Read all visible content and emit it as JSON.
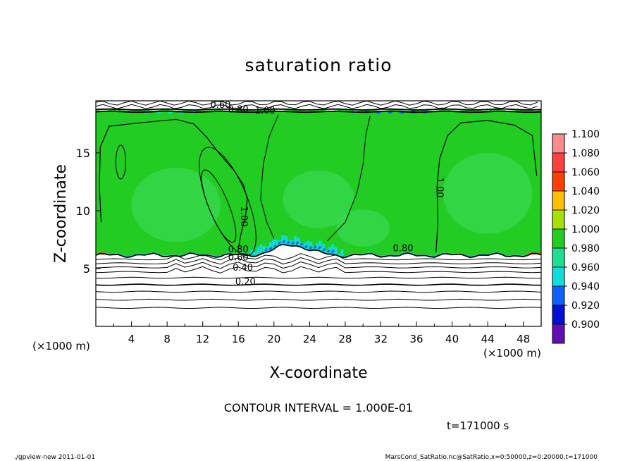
{
  "chart_data": {
    "type": "heatmap",
    "title": "saturation ratio",
    "xlabel": "X-coordinate",
    "ylabel": "Z-coordinate",
    "x_unit": "(×1000 m)",
    "y_unit": "(×1000 m)",
    "xlim": [
      0,
      50
    ],
    "ylim": [
      0,
      19.5
    ],
    "x_ticks": [
      4,
      8,
      12,
      16,
      20,
      24,
      28,
      32,
      36,
      40,
      44,
      48
    ],
    "y_ticks": [
      5,
      10,
      15
    ],
    "colorbar": {
      "levels": [
        1.1,
        1.08,
        1.06,
        1.04,
        1.02,
        1.0,
        0.98,
        0.96,
        0.94,
        0.92,
        0.9
      ],
      "labels": [
        "1.100",
        "1.080",
        "1.060",
        "1.040",
        "1.020",
        "1.000",
        "0.980",
        "0.960",
        "0.940",
        "0.920",
        "0.900"
      ],
      "colors": [
        "#ff8c8c",
        "#ff4040",
        "#ff4000",
        "#ffc000",
        "#a8e000",
        "#22cc22",
        "#20dd90",
        "#10ddd8",
        "#1060ff",
        "#0010d0",
        "#6010b0"
      ]
    },
    "saturated_layer": {
      "z_bottom": 6.2,
      "z_top": 18.7,
      "value": 1.0
    },
    "contour_labels": [
      {
        "text": "0.20",
        "x": 16.8,
        "y": 3.6
      },
      {
        "text": "0.40",
        "x": 16.5,
        "y": 4.8
      },
      {
        "text": "0.60",
        "x": 16.0,
        "y": 5.7
      },
      {
        "text": "0.80",
        "x": 16.0,
        "y": 6.4
      },
      {
        "text": "0.80",
        "x": 34.5,
        "y": 6.5
      },
      {
        "text": "1.00",
        "x": 16.3,
        "y": 9.5
      },
      {
        "text": "1.00",
        "x": 38.3,
        "y": 12.0
      },
      {
        "text": "1.00",
        "x": 19.0,
        "y": 18.4
      },
      {
        "text": "0.60",
        "x": 14.0,
        "y": 18.9
      },
      {
        "text": "0.80",
        "x": 16.0,
        "y": 18.5
      }
    ],
    "contour_interval": "CONTOUR INTERVAL = 1.000E-01",
    "time": "t=171000 s",
    "grid": false,
    "legend": "colorbar-right"
  },
  "footer": {
    "left": "./gpview-new  2011-01-01",
    "right": "MarsCond_SatRatio.nc@SatRatio,x=0:50000,z=0:20000,t=171000"
  },
  "colors": {
    "saturated": "#22cc22",
    "light_band": "#40dd60",
    "cyan_edge": "#10ddd8",
    "blue_edge": "#1060ff",
    "orange_edge": "#ff6000"
  }
}
